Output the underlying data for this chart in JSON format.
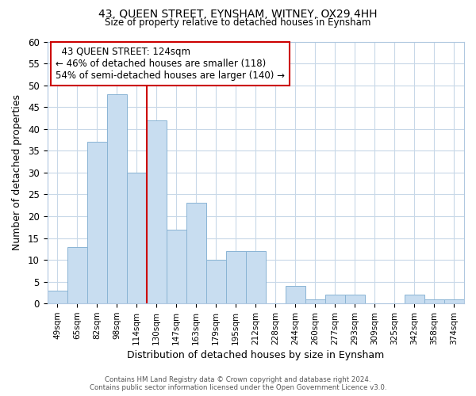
{
  "title": "43, QUEEN STREET, EYNSHAM, WITNEY, OX29 4HH",
  "subtitle": "Size of property relative to detached houses in Eynsham",
  "xlabel": "Distribution of detached houses by size in Eynsham",
  "ylabel": "Number of detached properties",
  "bar_color": "#c8ddf0",
  "bar_edge_color": "#8ab4d4",
  "categories": [
    "49sqm",
    "65sqm",
    "82sqm",
    "98sqm",
    "114sqm",
    "130sqm",
    "147sqm",
    "163sqm",
    "179sqm",
    "195sqm",
    "212sqm",
    "228sqm",
    "244sqm",
    "260sqm",
    "277sqm",
    "293sqm",
    "309sqm",
    "325sqm",
    "342sqm",
    "358sqm",
    "374sqm"
  ],
  "values": [
    3,
    13,
    37,
    48,
    30,
    42,
    17,
    23,
    10,
    12,
    12,
    0,
    4,
    1,
    2,
    2,
    0,
    0,
    2,
    1,
    1
  ],
  "ylim": [
    0,
    60
  ],
  "yticks": [
    0,
    5,
    10,
    15,
    20,
    25,
    30,
    35,
    40,
    45,
    50,
    55,
    60
  ],
  "vline_index": 4,
  "vline_color": "#cc0000",
  "annotation_title": "43 QUEEN STREET: 124sqm",
  "annotation_line1": "← 46% of detached houses are smaller (118)",
  "annotation_line2": "54% of semi-detached houses are larger (140) →",
  "annotation_box_color": "#ffffff",
  "annotation_box_edge": "#cc0000",
  "background_color": "#ffffff",
  "grid_color": "#c8d8e8",
  "footer_line1": "Contains HM Land Registry data © Crown copyright and database right 2024.",
  "footer_line2": "Contains public sector information licensed under the Open Government Licence v3.0."
}
